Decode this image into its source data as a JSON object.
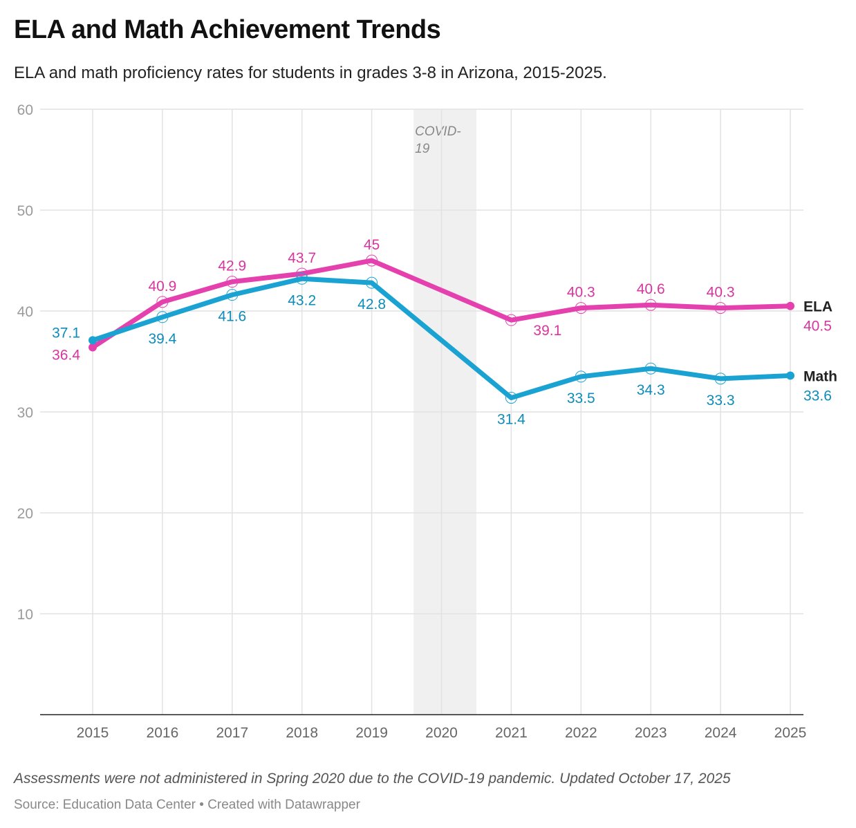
{
  "title": "ELA and Math Achievement Trends",
  "subtitle": "ELA and math proficiency rates for students in grades 3-8 in Arizona, 2015-2025.",
  "note": "Assessments were not administered in Spring 2020 due to the COVID-19 pandemic. Updated October 17, 2025",
  "source": "Source: Education Data Center • Created with Datawrapper",
  "chart_data": {
    "type": "line",
    "x": [
      2015,
      2016,
      2017,
      2018,
      2019,
      2020,
      2021,
      2022,
      2023,
      2024,
      2025
    ],
    "ylim": [
      0,
      60
    ],
    "yticks": [
      10,
      20,
      30,
      40,
      50,
      60
    ],
    "grid": true,
    "annotation": {
      "label_line1": "COVID-",
      "label_line2": "19",
      "range": [
        2019.6,
        2020.5
      ]
    },
    "series": [
      {
        "name": "ELA",
        "color": "#e541ae",
        "label_color": "#d9359f",
        "values": [
          36.4,
          40.9,
          42.9,
          43.7,
          45,
          null,
          39.1,
          40.3,
          40.6,
          40.3,
          40.5
        ]
      },
      {
        "name": "Math",
        "color": "#1aa3d2",
        "label_color": "#0d8cb9",
        "values": [
          37.1,
          39.4,
          41.6,
          43.2,
          42.8,
          null,
          31.4,
          33.5,
          34.3,
          33.3,
          33.6
        ]
      }
    ]
  }
}
